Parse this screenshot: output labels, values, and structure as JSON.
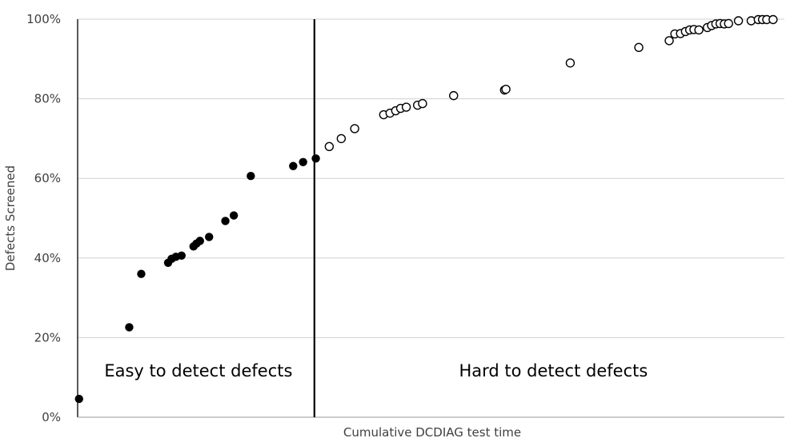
{
  "chart_data": {
    "type": "scatter",
    "title": "",
    "xlabel": "Cumulative DCDIAG test time",
    "ylabel": "Defects Screened",
    "y_ticks": [
      "0%",
      "20%",
      "40%",
      "60%",
      "80%",
      "100%"
    ],
    "ylim": [
      0,
      100
    ],
    "x_units": "relative position along x-axis (0 = axis start, 1 = axis end)",
    "xlim": [
      0,
      1
    ],
    "grid": "horizontal",
    "divider_x": 0.335,
    "regions": [
      {
        "label": "Easy to detect defects"
      },
      {
        "label": "Hard to detect defects"
      }
    ],
    "series": [
      {
        "style": "filled",
        "points": [
          {
            "x": 0.002,
            "y": 4.6
          },
          {
            "x": 0.073,
            "y": 22.6
          },
          {
            "x": 0.09,
            "y": 36.0
          },
          {
            "x": 0.128,
            "y": 38.8
          },
          {
            "x": 0.133,
            "y": 39.8
          },
          {
            "x": 0.139,
            "y": 40.3
          },
          {
            "x": 0.147,
            "y": 40.6
          },
          {
            "x": 0.164,
            "y": 42.9
          },
          {
            "x": 0.168,
            "y": 43.6
          },
          {
            "x": 0.173,
            "y": 44.3
          },
          {
            "x": 0.186,
            "y": 45.3
          },
          {
            "x": 0.209,
            "y": 49.3
          },
          {
            "x": 0.221,
            "y": 50.7
          },
          {
            "x": 0.245,
            "y": 60.6
          },
          {
            "x": 0.305,
            "y": 63.1
          },
          {
            "x": 0.319,
            "y": 64.1
          },
          {
            "x": 0.337,
            "y": 65.0
          }
        ]
      },
      {
        "style": "hollow",
        "points": [
          {
            "x": 0.356,
            "y": 68.0
          },
          {
            "x": 0.373,
            "y": 70.0
          },
          {
            "x": 0.392,
            "y": 72.5
          },
          {
            "x": 0.433,
            "y": 76.0
          },
          {
            "x": 0.442,
            "y": 76.4
          },
          {
            "x": 0.45,
            "y": 77.0
          },
          {
            "x": 0.457,
            "y": 77.6
          },
          {
            "x": 0.465,
            "y": 77.9
          },
          {
            "x": 0.481,
            "y": 78.4
          },
          {
            "x": 0.488,
            "y": 78.8
          },
          {
            "x": 0.532,
            "y": 80.8
          },
          {
            "x": 0.604,
            "y": 82.2
          },
          {
            "x": 0.606,
            "y": 82.4
          },
          {
            "x": 0.697,
            "y": 89.0
          },
          {
            "x": 0.794,
            "y": 92.9
          },
          {
            "x": 0.837,
            "y": 94.6
          },
          {
            "x": 0.845,
            "y": 96.3
          },
          {
            "x": 0.853,
            "y": 96.4
          },
          {
            "x": 0.86,
            "y": 96.9
          },
          {
            "x": 0.866,
            "y": 97.3
          },
          {
            "x": 0.872,
            "y": 97.4
          },
          {
            "x": 0.879,
            "y": 97.3
          },
          {
            "x": 0.891,
            "y": 97.9
          },
          {
            "x": 0.897,
            "y": 98.4
          },
          {
            "x": 0.903,
            "y": 98.8
          },
          {
            "x": 0.909,
            "y": 98.9
          },
          {
            "x": 0.915,
            "y": 98.8
          },
          {
            "x": 0.921,
            "y": 98.9
          },
          {
            "x": 0.935,
            "y": 99.6
          },
          {
            "x": 0.953,
            "y": 99.6
          },
          {
            "x": 0.963,
            "y": 99.9
          },
          {
            "x": 0.969,
            "y": 99.9
          },
          {
            "x": 0.975,
            "y": 99.9
          },
          {
            "x": 0.984,
            "y": 99.9
          }
        ]
      }
    ]
  }
}
